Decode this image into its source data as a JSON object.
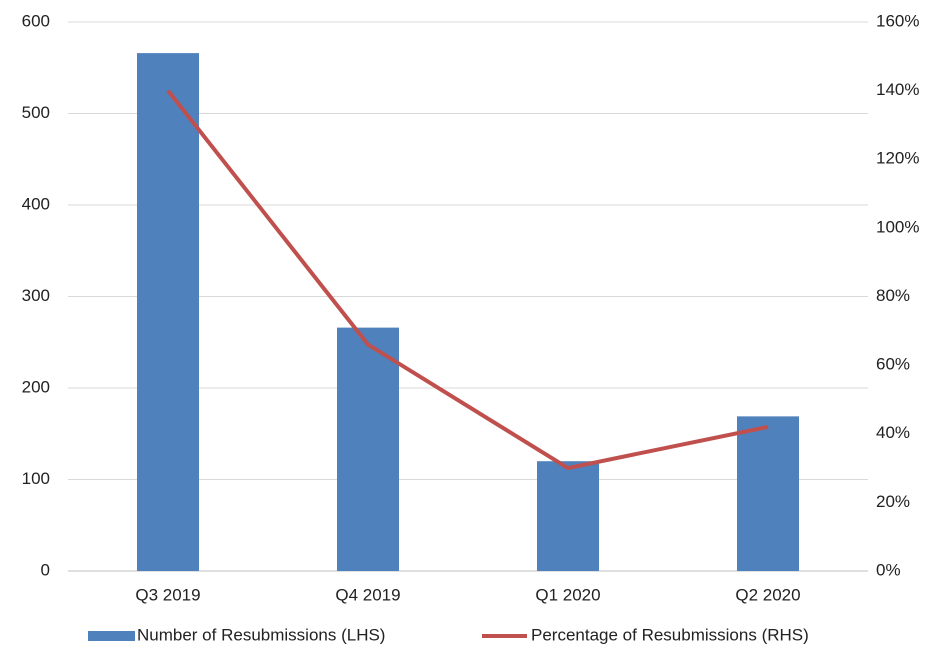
{
  "chart_data": {
    "type": "combo",
    "categories": [
      "Q3 2019",
      "Q4 2019",
      "Q1 2020",
      "Q2 2020"
    ],
    "series": [
      {
        "name": "Number of Resubmissions (LHS)",
        "type": "bar",
        "axis": "y",
        "color": "#4f81bd",
        "values": [
          566,
          266,
          120,
          169
        ]
      },
      {
        "name": "Percentage of Resubmissions (RHS)",
        "type": "line",
        "axis": "y2",
        "color": "#c0504d",
        "values": [
          140,
          66,
          30,
          42
        ]
      }
    ],
    "ylim": [
      0,
      600
    ],
    "yticks": [
      0,
      100,
      200,
      300,
      400,
      500,
      600
    ],
    "y2lim": [
      0,
      160
    ],
    "y2ticks": [
      {
        "value": 0,
        "label": "0%"
      },
      {
        "value": 20,
        "label": "20%"
      },
      {
        "value": 40,
        "label": "40%"
      },
      {
        "value": 60,
        "label": "60%"
      },
      {
        "value": 80,
        "label": "80%"
      },
      {
        "value": 100,
        "label": "100%"
      },
      {
        "value": 120,
        "label": "120%"
      },
      {
        "value": 140,
        "label": "140%"
      },
      {
        "value": 160,
        "label": "160%"
      }
    ],
    "grid": true,
    "legend": "bottom"
  }
}
